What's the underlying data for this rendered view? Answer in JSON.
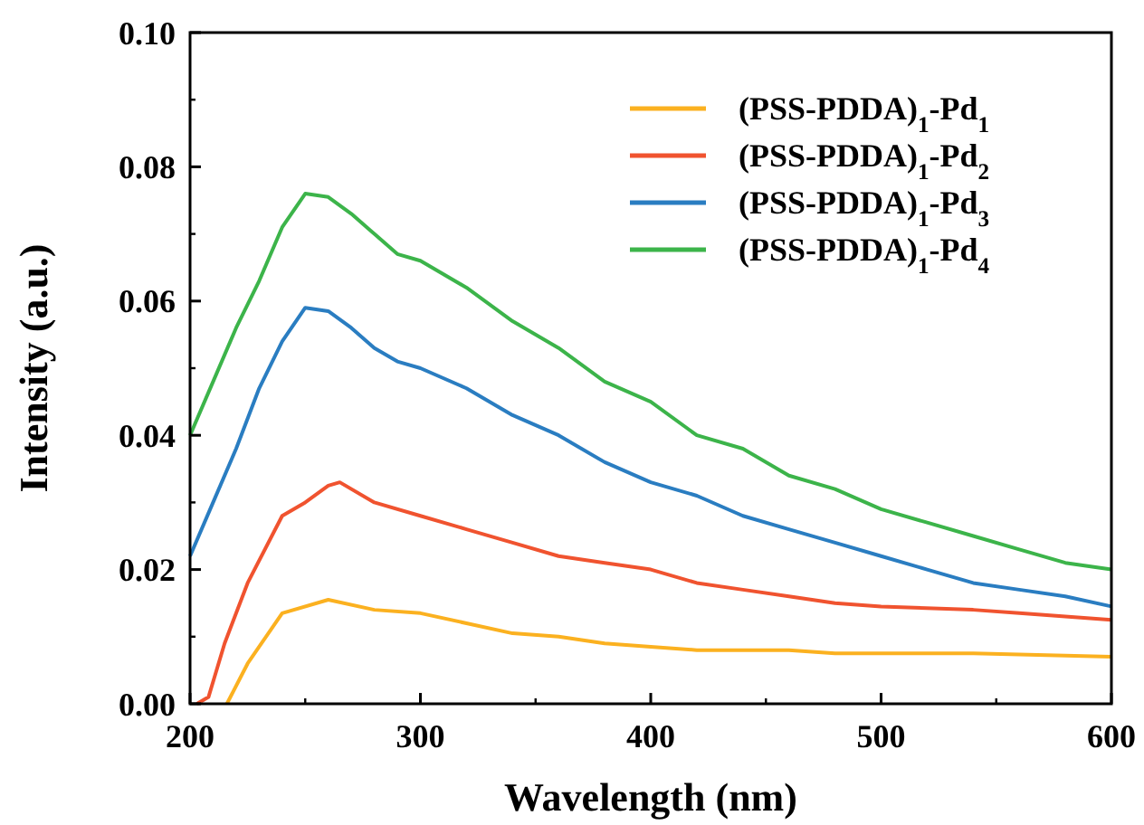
{
  "chart_data": {
    "type": "line",
    "xlabel": "Wavelength (nm)",
    "ylabel": "Intensity (a.u.)",
    "xlim": [
      200,
      600
    ],
    "ylim": [
      0,
      0.1
    ],
    "xticks": [
      200,
      300,
      400,
      500,
      600
    ],
    "yticks": [
      {
        "value": 0,
        "label": "0.00"
      },
      {
        "value": 0.02,
        "label": "0.02"
      },
      {
        "value": 0.04,
        "label": "0.04"
      },
      {
        "value": 0.06,
        "label": "0.06"
      },
      {
        "value": 0.08,
        "label": "0.08"
      },
      {
        "value": 0.1,
        "label": "0.10"
      }
    ],
    "grid": false,
    "legend": "top right",
    "line_style": "solid",
    "series": [
      {
        "name": "(PSS-PDDA)$_{1}$-Pd$_{1}$",
        "color": "#fbb120",
        "x": [
          216,
          225,
          240,
          260,
          280,
          300,
          320,
          340,
          360,
          380,
          400,
          420,
          440,
          460,
          480,
          500,
          540,
          600
        ],
        "values": [
          0,
          0.006,
          0.0135,
          0.0155,
          0.014,
          0.0135,
          0.012,
          0.0105,
          0.01,
          0.009,
          0.0085,
          0.008,
          0.008,
          0.008,
          0.0075,
          0.0075,
          0.0075,
          0.007
        ]
      },
      {
        "name": "(PSS-PDDA)$_{1}$-Pd$_{2}$",
        "color": "#f0532f",
        "x": [
          203,
          208,
          215,
          225,
          240,
          250,
          260,
          265,
          280,
          300,
          320,
          340,
          360,
          380,
          400,
          420,
          440,
          460,
          480,
          500,
          540,
          560,
          600
        ],
        "values": [
          0,
          0.001,
          0.009,
          0.018,
          0.028,
          0.03,
          0.0325,
          0.033,
          0.03,
          0.028,
          0.026,
          0.024,
          0.022,
          0.021,
          0.02,
          0.018,
          0.017,
          0.016,
          0.015,
          0.0145,
          0.014,
          0.0135,
          0.0125
        ]
      },
      {
        "name": "(PSS-PDDA)$_{1}$-Pd$_{3}$",
        "color": "#2a7dc1",
        "x": [
          200,
          210,
          220,
          230,
          240,
          250,
          260,
          270,
          280,
          290,
          300,
          320,
          340,
          360,
          380,
          400,
          420,
          440,
          460,
          480,
          500,
          520,
          540,
          560,
          580,
          600
        ],
        "values": [
          0.022,
          0.03,
          0.038,
          0.047,
          0.054,
          0.059,
          0.0585,
          0.056,
          0.053,
          0.051,
          0.05,
          0.047,
          0.043,
          0.04,
          0.036,
          0.033,
          0.031,
          0.028,
          0.026,
          0.024,
          0.022,
          0.02,
          0.018,
          0.017,
          0.016,
          0.0145
        ]
      },
      {
        "name": "(PSS-PDDA)$_{1}$-Pd$_{4}$",
        "color": "#3cb44a",
        "x": [
          200,
          210,
          220,
          230,
          240,
          250,
          260,
          270,
          280,
          290,
          300,
          320,
          340,
          360,
          380,
          400,
          420,
          440,
          460,
          480,
          500,
          520,
          540,
          560,
          580,
          600
        ],
        "values": [
          0.04,
          0.048,
          0.056,
          0.063,
          0.071,
          0.076,
          0.0755,
          0.073,
          0.07,
          0.067,
          0.066,
          0.062,
          0.057,
          0.053,
          0.048,
          0.045,
          0.04,
          0.038,
          0.034,
          0.032,
          0.029,
          0.027,
          0.025,
          0.023,
          0.021,
          0.02
        ]
      }
    ]
  }
}
